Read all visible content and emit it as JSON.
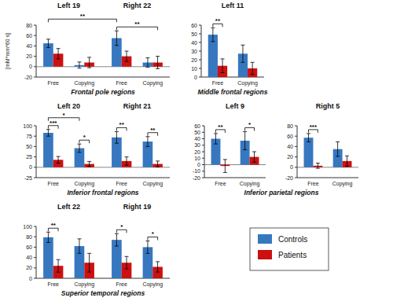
{
  "chart_data": [
    {
      "type": "bar",
      "title": [
        "Left 19",
        "Right 22"
      ],
      "x_label": "Frontal pole regions",
      "y_label": "[mM*mm*60 s]",
      "categories": [
        "Free",
        "Copying",
        "Free",
        "Copying"
      ],
      "series": [
        {
          "name": "Controls",
          "color": "#3777C0",
          "values": [
            45,
            3,
            55,
            8
          ],
          "errors": [
            8,
            6,
            14,
            9
          ]
        },
        {
          "name": "Patients",
          "color": "#CC1111",
          "values": [
            25,
            8,
            20,
            8
          ],
          "errors": [
            10,
            10,
            10,
            12
          ]
        }
      ],
      "ylim": [
        -20,
        80
      ],
      "yticks": [
        -20,
        0,
        20,
        40,
        60,
        80
      ],
      "annotations": [
        "**",
        "**"
      ]
    },
    {
      "type": "bar",
      "title": "Left 11",
      "x_label": "Middle frontal regions",
      "categories": [
        "Free",
        "Copying"
      ],
      "series": [
        {
          "color": "#3777C0",
          "values": [
            49,
            27
          ],
          "errors": [
            8,
            10
          ]
        },
        {
          "color": "#CC1111",
          "values": [
            13,
            10
          ],
          "errors": [
            8,
            7
          ]
        }
      ],
      "ylim": [
        0,
        60
      ],
      "yticks": [
        0,
        10,
        20,
        30,
        40,
        50,
        60
      ],
      "annotations": [
        "**"
      ]
    },
    {
      "type": "bar",
      "title": [
        "Left 20",
        "Right 21"
      ],
      "x_label": "Inferior frontal regions",
      "categories": [
        "Free",
        "Copying",
        "Free",
        "Copying"
      ],
      "series": [
        {
          "color": "#3777C0",
          "values": [
            83,
            46,
            72,
            62
          ],
          "errors": [
            8,
            10,
            14,
            12
          ]
        },
        {
          "color": "#CC1111",
          "values": [
            18,
            8,
            15,
            8
          ],
          "errors": [
            8,
            6,
            10,
            7
          ]
        }
      ],
      "ylim": [
        -25,
        100
      ],
      "yticks": [
        -25,
        0,
        25,
        50,
        75,
        100
      ],
      "annotations": [
        "*",
        "***",
        "*",
        "**",
        "**"
      ]
    },
    {
      "type": "bar",
      "title": "Left 9",
      "x_label": "Inferior parietal regions",
      "categories": [
        "Free",
        "Copying"
      ],
      "series": [
        {
          "color": "#3777C0",
          "values": [
            40,
            37
          ],
          "errors": [
            8,
            14
          ]
        },
        {
          "color": "#CC1111",
          "values": [
            -2,
            12
          ],
          "errors": [
            10,
            8
          ]
        }
      ],
      "ylim": [
        -20,
        60
      ],
      "yticks": [
        -20,
        -10,
        0,
        10,
        20,
        30,
        40,
        50,
        60
      ],
      "annotations": [
        "**",
        "*"
      ]
    },
    {
      "type": "bar",
      "title": "Right 5",
      "categories": [
        "Free",
        "Copying"
      ],
      "series": [
        {
          "color": "#3777C0",
          "values": [
            57,
            35
          ],
          "errors": [
            8,
            14
          ]
        },
        {
          "color": "#CC1111",
          "values": [
            3,
            12
          ],
          "errors": [
            5,
            10
          ]
        }
      ],
      "ylim": [
        -20,
        80
      ],
      "yticks": [
        -20,
        0,
        20,
        40,
        60,
        80
      ],
      "annotations": [
        "***"
      ]
    },
    {
      "type": "bar",
      "title": [
        "Left 22",
        "Right 19"
      ],
      "x_label": "Superior temporal regions",
      "categories": [
        "Free",
        "Copying",
        "Free",
        "Copying"
      ],
      "series": [
        {
          "color": "#3777C0",
          "values": [
            79,
            62,
            74,
            60
          ],
          "errors": [
            10,
            14,
            12,
            12
          ]
        },
        {
          "color": "#CC1111",
          "values": [
            24,
            30,
            30,
            22
          ],
          "errors": [
            12,
            18,
            12,
            10
          ]
        }
      ],
      "ylim": [
        0,
        100
      ],
      "yticks": [
        0,
        20,
        40,
        60,
        80,
        100
      ],
      "annotations": [
        "**",
        "*",
        "*"
      ]
    }
  ]
}
